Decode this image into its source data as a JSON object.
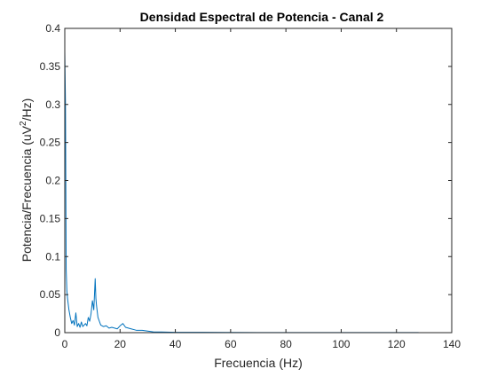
{
  "chart_data": {
    "type": "line",
    "title": "Densidad Espectral de Potencia - Canal 2",
    "xlabel": "Frecuencia (Hz)",
    "ylabel_main": "Potencia/Frecuencia (uV",
    "ylabel_sup": "2",
    "ylabel_tail": "/Hz)",
    "xlim": [
      0,
      140
    ],
    "ylim": [
      0,
      0.4
    ],
    "xticks": [
      0,
      20,
      40,
      60,
      80,
      100,
      120,
      140
    ],
    "xtick_labels": [
      "0",
      "20",
      "40",
      "60",
      "80",
      "100",
      "120",
      "140"
    ],
    "yticks": [
      0,
      0.05,
      0.1,
      0.15,
      0.2,
      0.25,
      0.3,
      0.35,
      0.4
    ],
    "ytick_labels": [
      "0",
      "0.05",
      "0.1",
      "0.15",
      "0.2",
      "0.25",
      "0.3",
      "0.35",
      "0.4"
    ],
    "grid": false,
    "line_color": "#0072BD",
    "series": [
      {
        "x": [
          0,
          0.25,
          0.5,
          0.75,
          1,
          1.5,
          2,
          2.5,
          3,
          3.5,
          4,
          4.5,
          5,
          5.5,
          6,
          6.5,
          7,
          7.5,
          8,
          8.5,
          9,
          9.5,
          10,
          10.5,
          11,
          11.25,
          11.5,
          12,
          12.5,
          13,
          14,
          15,
          16,
          17,
          18,
          19,
          20,
          21,
          22,
          23,
          24,
          25,
          26,
          28,
          30,
          32,
          35,
          40,
          50,
          60,
          70,
          80,
          90,
          100,
          110,
          120,
          128
        ],
        "y": [
          0.37,
          0.3,
          0.083,
          0.055,
          0.045,
          0.03,
          0.02,
          0.012,
          0.016,
          0.01,
          0.026,
          0.008,
          0.012,
          0.007,
          0.014,
          0.008,
          0.01,
          0.012,
          0.009,
          0.02,
          0.015,
          0.025,
          0.042,
          0.03,
          0.071,
          0.045,
          0.035,
          0.02,
          0.015,
          0.01,
          0.008,
          0.009,
          0.006,
          0.007,
          0.006,
          0.005,
          0.009,
          0.012,
          0.007,
          0.006,
          0.005,
          0.004,
          0.003,
          0.003,
          0.002,
          0.001,
          0.0008,
          0.0005,
          0.0004,
          0.0003,
          0.0002,
          0.0002,
          0.0002,
          0.0001,
          0.0001,
          0.0001,
          0.0001
        ]
      }
    ]
  }
}
